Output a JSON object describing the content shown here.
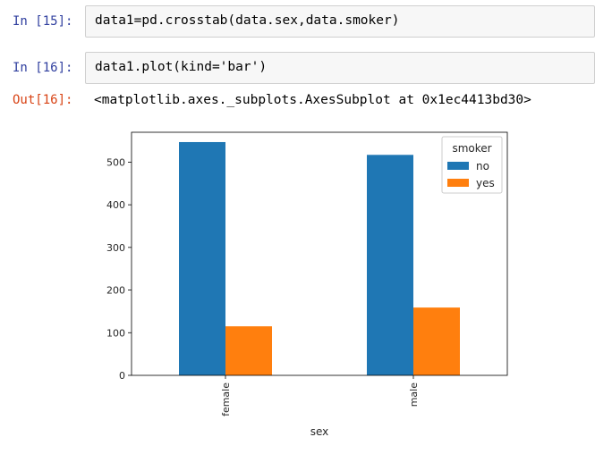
{
  "cells": [
    {
      "prompt": "In [15]:",
      "code": "data1=pd.crosstab(data.sex,data.smoker)"
    },
    {
      "prompt": "In [16]:",
      "code": "data1.plot(kind='bar')"
    }
  ],
  "output": {
    "prompt": "Out[16]:",
    "text": "<matplotlib.axes._subplots.AxesSubplot at 0x1ec4413bd30>"
  },
  "colors": {
    "no": "#1f77b4",
    "yes": "#ff7f0e",
    "prompt_in": "#303f9f",
    "prompt_out": "#d84315"
  },
  "chart_data": {
    "type": "bar",
    "categories": [
      "female",
      "male"
    ],
    "series": [
      {
        "name": "no",
        "values": [
          547,
          517
        ]
      },
      {
        "name": "yes",
        "values": [
          115,
          159
        ]
      }
    ],
    "xlabel": "sex",
    "ylabel": "",
    "ylim": [
      0,
      570
    ],
    "yticks": [
      "0",
      "100",
      "200",
      "300",
      "400",
      "500"
    ],
    "legend_title": "smoker",
    "legend_position": "top-right",
    "grid": false
  }
}
